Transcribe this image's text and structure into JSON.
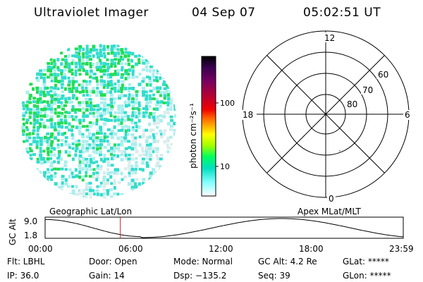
{
  "header": {
    "title": "Ultraviolet Imager",
    "date": "04 Sep 07",
    "time": "05:02:51 UT"
  },
  "colorbar": {
    "unit_label": "photon cm⁻²s⁻¹",
    "ticks": [
      "100",
      "10"
    ],
    "colors": [
      "#000000",
      "#3a0050",
      "#7a0060",
      "#b0003a",
      "#e00000",
      "#ff6000",
      "#ffb000",
      "#ffff00",
      "#a0ff00",
      "#00ff60",
      "#00e0c0",
      "#80ffff",
      "#ffffff"
    ]
  },
  "polar_plot": {
    "mlt_labels": {
      "top": "12",
      "left": "18",
      "right": "6",
      "bottom": "0"
    },
    "lat_labels": [
      "60",
      "70",
      "80"
    ]
  },
  "altitude_plot": {
    "axis_label": "GC Alt",
    "y_ticks": [
      "9.0",
      "1.8"
    ],
    "x_ticks": [
      "00:00",
      "06:00",
      "12:00",
      "18:00",
      "23:59"
    ],
    "left_title": "Geographic Lat/Lon",
    "right_title": "Apex MLat/MLT",
    "current_time_fraction": 0.21
  },
  "footer": {
    "flt": "Flt: LBHL",
    "ip": "IP: 36.0",
    "door": "Door: Open",
    "gain": "Gain: 14",
    "mode": "Mode: Normal",
    "dsp": "Dsp: −135.2",
    "gc_alt": "GC Alt: 4.2 Re",
    "seq": "Seq: 39",
    "glat": "GLat: *****",
    "glon": "GLon: *****"
  },
  "image_colors": {
    "green": "#22dd55",
    "cyan": "#33ddcc",
    "light_cyan": "#aaeeee",
    "pale": "#d8ecec"
  }
}
